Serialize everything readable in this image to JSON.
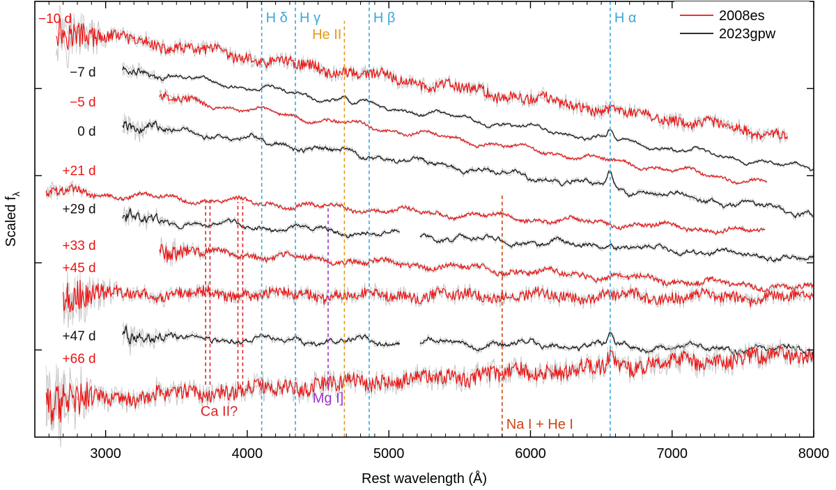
{
  "chart_data": {
    "type": "line",
    "title": "",
    "xlabel": "Rest wavelength (Å)",
    "ylabel_main": "Scaled f",
    "ylabel_sub": "λ",
    "xlim": [
      2500,
      8000
    ],
    "xticks": [
      3000,
      4000,
      5000,
      6000,
      7000,
      8000
    ],
    "ylim": [
      0,
      1
    ],
    "y_minor_ticks": [
      0.2,
      0.4,
      0.6,
      0.8
    ],
    "legend": {
      "position": "top-right",
      "entries": [
        {
          "name": "2008es",
          "color": "#ee1111"
        },
        {
          "name": "2023gpw",
          "color": "#111111"
        }
      ]
    },
    "colors": {
      "red": "#ee1111",
      "black": "#111111",
      "gray": "#b8b8b8",
      "hydrogen": "#3aa6dd",
      "he": "#e39a1a",
      "mg": "#9933cc",
      "na": "#cc4411",
      "ca": "#dd2222"
    },
    "line_markers": [
      {
        "label": "H δ",
        "wavelength": 4102,
        "color": "#3aa6dd",
        "y_from": 0.0,
        "y_to": 1.0,
        "label_side": "right",
        "label_y": 0.963
      },
      {
        "label": "H γ",
        "wavelength": 4340,
        "color": "#3aa6dd",
        "y_from": 0.0,
        "y_to": 1.0,
        "label_side": "right",
        "label_y": 0.963
      },
      {
        "label": "He II",
        "wavelength": 4686,
        "color": "#e39a1a",
        "y_from": 0.0,
        "y_to": 0.955,
        "label_side": "left",
        "label_y": 0.925
      },
      {
        "label": "H β",
        "wavelength": 4861,
        "color": "#3aa6dd",
        "y_from": 0.0,
        "y_to": 1.0,
        "label_side": "right",
        "label_y": 0.963
      },
      {
        "label": "H α",
        "wavelength": 6563,
        "color": "#3aa6dd",
        "y_from": 0.0,
        "y_to": 1.0,
        "label_side": "right",
        "label_y": 0.963
      },
      {
        "label": "Mg I]",
        "wavelength": 4571,
        "color": "#9933cc",
        "y_from": 0.115,
        "y_to": 0.525,
        "label_side": "center",
        "label_y": 0.09
      },
      {
        "label": "Na I + He I",
        "wavelength": 5800,
        "color": "#cc4411",
        "y_from": 0.0,
        "y_to": 0.556,
        "label_side": "right",
        "label_y": 0.03
      }
    ],
    "ca_marker": {
      "label": "Ca II?",
      "wavelengths": [
        3706,
        3737,
        3934,
        3968
      ],
      "color": "#dd2222",
      "y_from": 0.12,
      "y_to": 0.54,
      "label_y": 0.06,
      "label_wavelength": 3700
    },
    "series": [
      {
        "name": "2008es",
        "label": "−10 d",
        "color": "#ee1111",
        "x_start": 2650,
        "x_end": 7820,
        "y_start": 0.935,
        "y_end": 0.69,
        "noise": 0.012,
        "smooth_noise": false,
        "label_y": 0.962,
        "label_x": 2830,
        "lines": []
      },
      {
        "name": "2023gpw",
        "label": "−7 d",
        "color": "#111111",
        "x_start": 3120,
        "x_end": 8000,
        "y_start": 0.845,
        "y_end": 0.615,
        "noise": 0.004,
        "smooth_noise": true,
        "label_y": 0.839,
        "label_x": 3000,
        "lines": [
          [
            4686,
            0.012
          ],
          [
            6563,
            0.02
          ]
        ]
      },
      {
        "name": "2008es",
        "label": "−5 d",
        "color": "#ee1111",
        "x_start": 3380,
        "x_end": 7670,
        "y_start": 0.78,
        "y_end": 0.583,
        "noise": 0.003,
        "smooth_noise": false,
        "label_y": 0.77,
        "label_x": 3000,
        "lines": []
      },
      {
        "name": "2023gpw",
        "label": "0 d",
        "color": "#111111",
        "x_start": 3120,
        "x_end": 8000,
        "y_start": 0.72,
        "y_end": 0.512,
        "noise": 0.006,
        "smooth_noise": true,
        "label_y": 0.703,
        "label_x": 3000,
        "lines": [
          [
            6563,
            0.03
          ]
        ]
      },
      {
        "name": "2008es",
        "label": "+21 d",
        "color": "#ee1111",
        "x_start": 2580,
        "x_end": 7660,
        "y_start": 0.565,
        "y_end": 0.47,
        "noise": 0.004,
        "smooth_noise": false,
        "label_y": 0.613,
        "label_x": 3000,
        "lines": []
      },
      {
        "name": "2023gpw",
        "label": "+29 d",
        "color": "#111111",
        "x_start": 3120,
        "x_end": 8000,
        "y_start": 0.5,
        "y_end": 0.41,
        "noise": 0.006,
        "smooth_noise": true,
        "gap": [
          5080,
          5220
        ],
        "label_y": 0.525,
        "label_x": 3000,
        "lines": [
          [
            6563,
            0.015
          ]
        ]
      },
      {
        "name": "2008es",
        "label": "+33 d",
        "color": "#ee1111",
        "x_start": 3380,
        "x_end": 8000,
        "y_start": 0.43,
        "y_end": 0.34,
        "noise": 0.006,
        "smooth_noise": false,
        "label_y": 0.441,
        "label_x": 3000,
        "lines": []
      },
      {
        "name": "2008es",
        "label": "+45 d",
        "color": "#ee1111",
        "x_start": 2700,
        "x_end": 8000,
        "y_start": 0.33,
        "y_end": 0.32,
        "noise": 0.012,
        "smooth_noise": false,
        "label_y": 0.39,
        "label_x": 3000,
        "lines": []
      },
      {
        "name": "2023gpw",
        "label": "+47 d",
        "color": "#111111",
        "x_start": 3120,
        "x_end": 8000,
        "y_start": 0.23,
        "y_end": 0.2,
        "noise": 0.007,
        "smooth_noise": true,
        "gap": [
          5080,
          5220
        ],
        "label_y": 0.233,
        "label_x": 3000,
        "lines": [
          [
            6563,
            0.03
          ]
        ]
      },
      {
        "name": "2008es",
        "label": "+66 d",
        "color": "#ee1111",
        "x_start": 2580,
        "x_end": 8000,
        "y_start": 0.08,
        "y_end": 0.19,
        "noise": 0.018,
        "smooth_noise": false,
        "label_y": 0.181,
        "label_x": 3000,
        "lines": [
          [
            6563,
            0.02
          ]
        ]
      }
    ]
  }
}
